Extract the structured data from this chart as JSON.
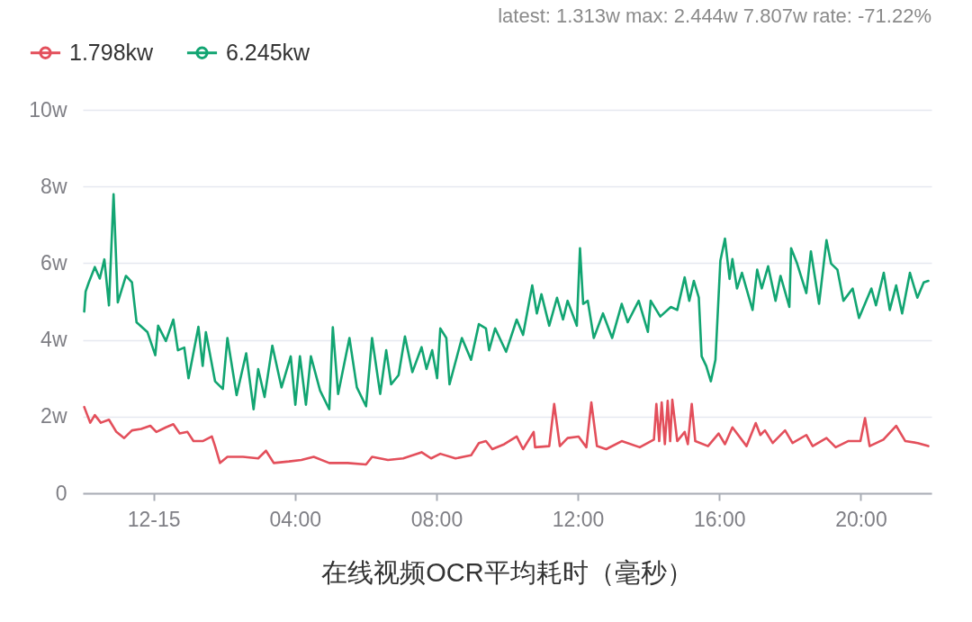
{
  "chart_data": {
    "type": "line",
    "title": "在线视频OCR平均耗时（毫秒）",
    "annotations": [
      "latest: 1.313w  max: 2.444w 7.807w  rate: -71.22%"
    ],
    "xlim": [
      -2,
      22
    ],
    "xticks": [
      {
        "value": 0,
        "label": "12-15"
      },
      {
        "value": 4,
        "label": "04:00"
      },
      {
        "value": 8,
        "label": "08:00"
      },
      {
        "value": 12,
        "label": "12:00"
      },
      {
        "value": 16,
        "label": "16:00"
      },
      {
        "value": 20,
        "label": "20:00"
      }
    ],
    "ylim": [
      0,
      10
    ],
    "yticks": [
      0,
      {
        "value": 2,
        "label": "2w"
      },
      {
        "value": 4,
        "label": "4w"
      },
      {
        "value": 6,
        "label": "6w"
      },
      {
        "value": 8,
        "label": "8w"
      },
      {
        "value": 10,
        "label": "10w"
      }
    ],
    "grid": "y",
    "legend": "top left",
    "series": [
      {
        "name": "1.798kw",
        "color": "#e34f5b",
        "x": [
          -1.96,
          -1.79,
          -1.66,
          -1.49,
          -1.26,
          -1.05,
          -0.83,
          -0.61,
          -0.35,
          -0.09,
          0.08,
          0.35,
          0.56,
          0.74,
          0.96,
          1.13,
          1.39,
          1.65,
          1.74,
          1.88,
          2.09,
          2.53,
          2.96,
          3.18,
          3.4,
          3.83,
          4.18,
          4.53,
          4.97,
          5.49,
          6.01,
          6.18,
          6.63,
          7.06,
          7.58,
          7.85,
          8.11,
          8.54,
          8.98,
          9.2,
          9.4,
          9.58,
          9.92,
          10.27,
          10.45,
          10.75,
          10.79,
          11.19,
          11.33,
          11.49,
          11.71,
          12.02,
          12.24,
          12.38,
          12.54,
          12.8,
          13.24,
          13.75,
          14.15,
          14.22,
          14.3,
          14.37,
          14.46,
          14.54,
          14.61,
          14.67,
          14.81,
          15.02,
          15.11,
          15.22,
          15.32,
          15.68,
          15.98,
          16.16,
          16.37,
          16.77,
          17.03,
          17.16,
          17.29,
          17.51,
          17.86,
          18.07,
          18.46,
          18.64,
          19.03,
          19.29,
          19.64,
          19.99,
          20.12,
          20.25,
          20.64,
          21.0,
          21.26,
          21.61,
          21.91
        ],
        "values": [
          2.25,
          1.84,
          2.04,
          1.84,
          1.92,
          1.6,
          1.44,
          1.64,
          1.68,
          1.76,
          1.6,
          1.72,
          1.8,
          1.56,
          1.6,
          1.36,
          1.36,
          1.48,
          1.23,
          0.79,
          0.95,
          0.95,
          0.91,
          1.11,
          0.79,
          0.83,
          0.87,
          0.95,
          0.79,
          0.79,
          0.75,
          0.95,
          0.87,
          0.91,
          1.07,
          0.91,
          1.03,
          0.91,
          0.99,
          1.31,
          1.36,
          1.15,
          1.28,
          1.48,
          1.15,
          1.6,
          1.2,
          1.23,
          2.33,
          1.23,
          1.44,
          1.48,
          1.2,
          2.37,
          1.23,
          1.15,
          1.36,
          1.2,
          1.4,
          2.33,
          1.36,
          2.37,
          1.28,
          2.41,
          1.36,
          2.44,
          1.36,
          1.6,
          1.28,
          2.33,
          1.36,
          1.23,
          1.56,
          1.28,
          1.72,
          1.23,
          1.83,
          1.52,
          1.64,
          1.31,
          1.64,
          1.31,
          1.52,
          1.23,
          1.44,
          1.2,
          1.36,
          1.36,
          1.96,
          1.23,
          1.4,
          1.76,
          1.36,
          1.31,
          1.23
        ]
      },
      {
        "name": "6.245kw",
        "color": "#12a572",
        "x": [
          -1.96,
          -1.92,
          -1.83,
          -1.66,
          -1.52,
          -1.39,
          -1.26,
          -1.13,
          -1.01,
          -0.78,
          -0.61,
          -0.48,
          -0.17,
          0.05,
          0.13,
          0.35,
          0.56,
          0.69,
          0.87,
          0.99,
          1.27,
          1.39,
          1.48,
          1.74,
          1.96,
          2.09,
          2.35,
          2.62,
          2.83,
          2.96,
          3.14,
          3.36,
          3.62,
          3.88,
          4.01,
          4.14,
          4.31,
          4.45,
          4.71,
          4.97,
          5.07,
          5.22,
          5.54,
          5.75,
          6.01,
          6.18,
          6.41,
          6.58,
          6.72,
          6.93,
          7.11,
          7.32,
          7.58,
          7.72,
          7.88,
          8.02,
          8.11,
          8.28,
          8.37,
          8.72,
          8.98,
          9.2,
          9.4,
          9.49,
          9.66,
          9.97,
          10.27,
          10.45,
          10.71,
          10.84,
          10.97,
          11.19,
          11.41,
          11.58,
          11.71,
          11.97,
          12.06,
          12.15,
          12.28,
          12.45,
          12.71,
          12.97,
          13.24,
          13.41,
          13.72,
          13.98,
          14.06,
          14.33,
          14.63,
          14.81,
          15.02,
          15.15,
          15.28,
          15.42,
          15.5,
          15.63,
          15.76,
          15.89,
          16.03,
          16.16,
          16.29,
          16.37,
          16.5,
          16.64,
          16.94,
          17.07,
          17.2,
          17.38,
          17.59,
          17.73,
          17.98,
          18.03,
          18.2,
          18.46,
          18.59,
          18.82,
          19.03,
          19.16,
          19.34,
          19.51,
          19.77,
          19.95,
          20.3,
          20.43,
          20.65,
          20.82,
          21.0,
          21.17,
          21.39,
          21.6,
          21.78,
          21.91
        ],
        "values": [
          4.74,
          5.26,
          5.5,
          5.9,
          5.6,
          6.1,
          4.9,
          7.8,
          4.98,
          5.67,
          5.5,
          4.46,
          4.2,
          3.6,
          4.37,
          3.97,
          4.53,
          3.73,
          3.8,
          3.0,
          4.34,
          3.32,
          4.2,
          2.92,
          2.72,
          4.05,
          2.56,
          3.65,
          2.19,
          3.24,
          2.51,
          3.85,
          2.76,
          3.57,
          2.31,
          3.57,
          2.31,
          3.57,
          2.68,
          2.19,
          4.33,
          2.59,
          4.05,
          2.76,
          2.27,
          4.05,
          2.59,
          3.73,
          2.84,
          3.08,
          4.09,
          3.16,
          3.81,
          3.24,
          3.73,
          3.0,
          4.3,
          4.05,
          2.84,
          4.05,
          3.48,
          4.41,
          4.3,
          3.73,
          4.3,
          3.69,
          4.53,
          4.13,
          5.42,
          4.69,
          5.19,
          4.37,
          5.1,
          4.53,
          5.02,
          4.37,
          6.39,
          4.94,
          5.02,
          4.05,
          4.69,
          4.05,
          4.94,
          4.46,
          5.02,
          4.21,
          5.02,
          4.61,
          4.86,
          4.78,
          5.63,
          5.02,
          5.54,
          5.1,
          3.57,
          3.32,
          2.92,
          3.48,
          6.07,
          6.64,
          5.59,
          6.11,
          5.34,
          5.75,
          4.78,
          5.83,
          5.34,
          5.92,
          5.02,
          5.67,
          4.86,
          6.39,
          5.99,
          5.22,
          6.31,
          4.94,
          6.6,
          5.99,
          5.83,
          5.02,
          5.34,
          4.57,
          5.34,
          4.9,
          5.75,
          4.78,
          5.42,
          4.69,
          5.75,
          5.1,
          5.5,
          5.54
        ]
      }
    ]
  }
}
